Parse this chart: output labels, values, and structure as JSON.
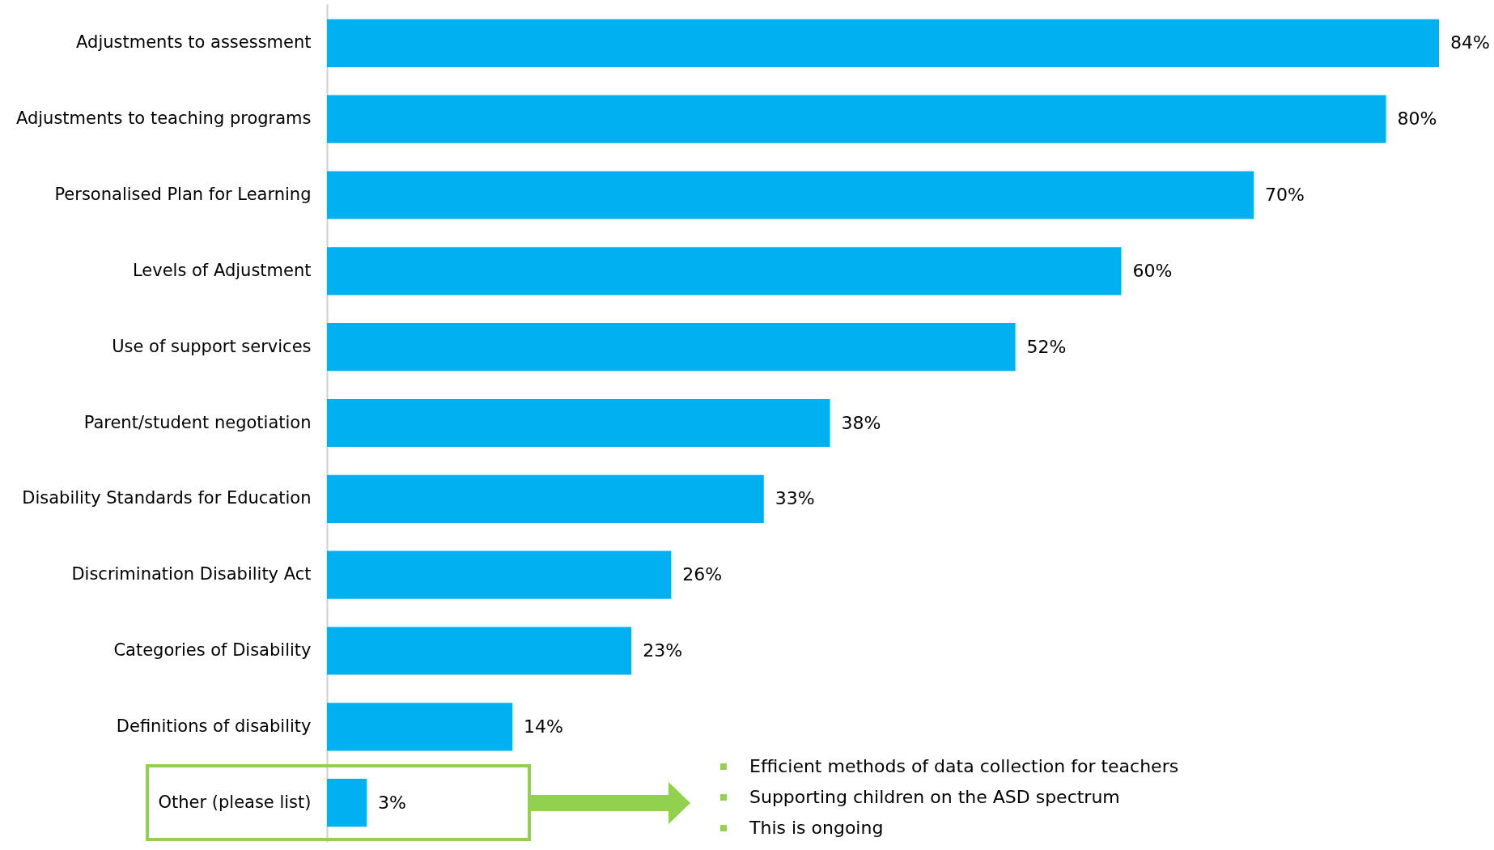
{
  "chart_data": {
    "type": "bar",
    "orientation": "horizontal",
    "tick_labels": "y",
    "grid": false,
    "categories": [
      "Adjustments to assessment",
      "Adjustments to teaching programs",
      "Personalised Plan for Learning",
      "Levels of Adjustment",
      "Use of support services",
      "Parent/student negotiation",
      "Disability Standards for Education",
      "Discrimination Disability Act",
      "Categories of Disability",
      "Definitions of disability",
      "Other (please list)"
    ],
    "values": [
      84,
      80,
      70,
      60,
      52,
      38,
      33,
      26,
      23,
      14,
      3
    ],
    "value_labels": [
      "84%",
      "80%",
      "70%",
      "60%",
      "52%",
      "38%",
      "33%",
      "26%",
      "23%",
      "14%",
      "3%"
    ],
    "color": "#00b0f0",
    "annotations": [
      "Efficient methods of data collection for teachers",
      "Supporting children on the ASD spectrum",
      "This is ongoing"
    ]
  }
}
